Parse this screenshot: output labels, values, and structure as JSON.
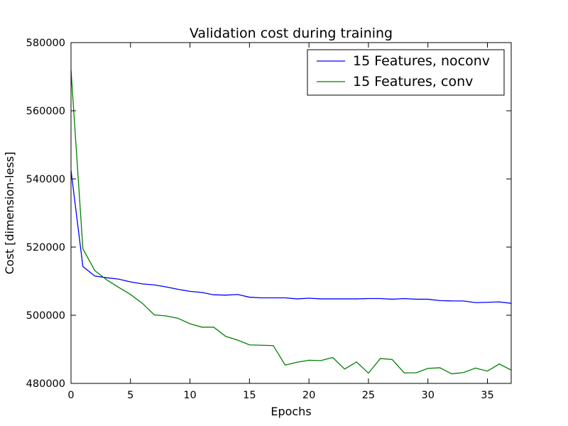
{
  "chart_data": {
    "type": "line",
    "title": "Validation cost during training",
    "xlabel": "Epochs",
    "ylabel": "Cost [dimension-less]",
    "xlim": [
      0,
      37
    ],
    "ylim": [
      480000,
      580000
    ],
    "xticks": [
      0,
      5,
      10,
      15,
      20,
      25,
      30,
      35
    ],
    "yticks": [
      480000,
      500000,
      520000,
      540000,
      560000,
      580000
    ],
    "grid": false,
    "legend_position": "top-right",
    "series": [
      {
        "name": "15 Features, noconv",
        "color": "#0000ff",
        "x": [
          0,
          1,
          2,
          3,
          4,
          5,
          6,
          7,
          8,
          9,
          10,
          11,
          12,
          13,
          14,
          15,
          16,
          17,
          18,
          19,
          20,
          21,
          22,
          23,
          24,
          25,
          26,
          27,
          28,
          29,
          30,
          31,
          32,
          33,
          34,
          35,
          36,
          37
        ],
        "values": [
          542500,
          514300,
          511500,
          511000,
          510600,
          509800,
          509200,
          508900,
          508300,
          507600,
          507000,
          506700,
          506000,
          505900,
          506100,
          505300,
          505100,
          505100,
          505100,
          504800,
          505000,
          504800,
          504800,
          504800,
          504800,
          504900,
          504900,
          504700,
          504900,
          504700,
          504700,
          504300,
          504200,
          504200,
          503700,
          503800,
          503900,
          503500
        ]
      },
      {
        "name": "15 Features, conv",
        "color": "#008000",
        "x": [
          0,
          1,
          2,
          3,
          4,
          5,
          6,
          7,
          8,
          9,
          10,
          11,
          12,
          13,
          14,
          15,
          16,
          17,
          18,
          19,
          20,
          21,
          22,
          23,
          24,
          25,
          26,
          27,
          28,
          29,
          30,
          31,
          32,
          33,
          34,
          35,
          36,
          37
        ],
        "values": [
          572000,
          519500,
          513100,
          510400,
          508200,
          506100,
          503500,
          500100,
          499800,
          499100,
          497500,
          496500,
          496500,
          493800,
          492700,
          491300,
          491200,
          491100,
          485400,
          486200,
          486800,
          486700,
          487600,
          484200,
          486300,
          483000,
          487300,
          487000,
          483100,
          483100,
          484400,
          484600,
          482800,
          483200,
          484500,
          483600,
          485700,
          483900
        ]
      }
    ]
  }
}
